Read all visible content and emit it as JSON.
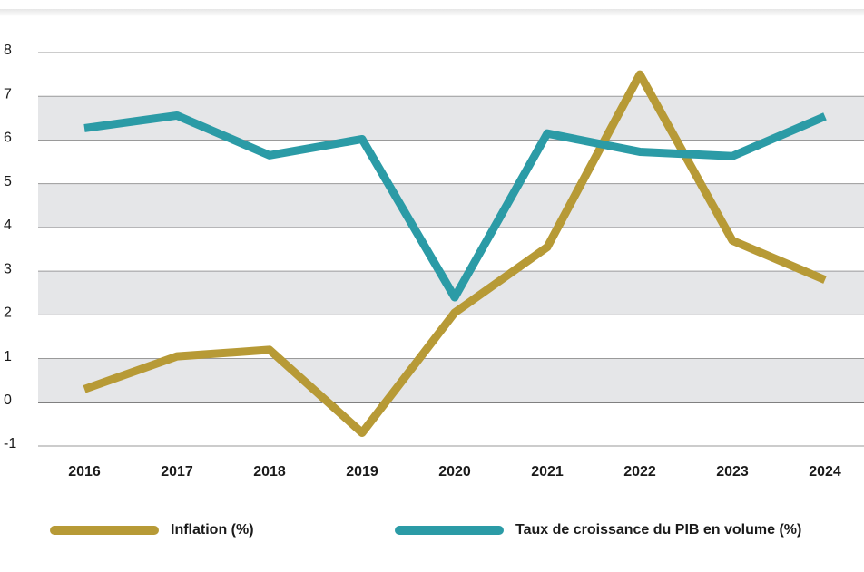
{
  "chart_data": {
    "type": "line",
    "categories": [
      "2016",
      "2017",
      "2018",
      "2019",
      "2020",
      "2021",
      "2022",
      "2023",
      "2024"
    ],
    "series": [
      {
        "name": "Inflation (%)",
        "color": "#b79a36",
        "values": [
          0.3,
          1.05,
          1.2,
          -0.7,
          2.05,
          3.55,
          7.5,
          3.7,
          2.8
        ]
      },
      {
        "name": "Taux de croissance du PIB en volume (%)",
        "color": "#2b9ba6",
        "values": [
          6.27,
          6.56,
          5.65,
          6.02,
          2.4,
          6.15,
          5.73,
          5.63,
          6.54
        ]
      }
    ],
    "ylim": [
      -1,
      8
    ],
    "yticks": [
      -1,
      0,
      1,
      2,
      3,
      4,
      5,
      6,
      7,
      8
    ],
    "grid": true,
    "legend": "bottom"
  }
}
